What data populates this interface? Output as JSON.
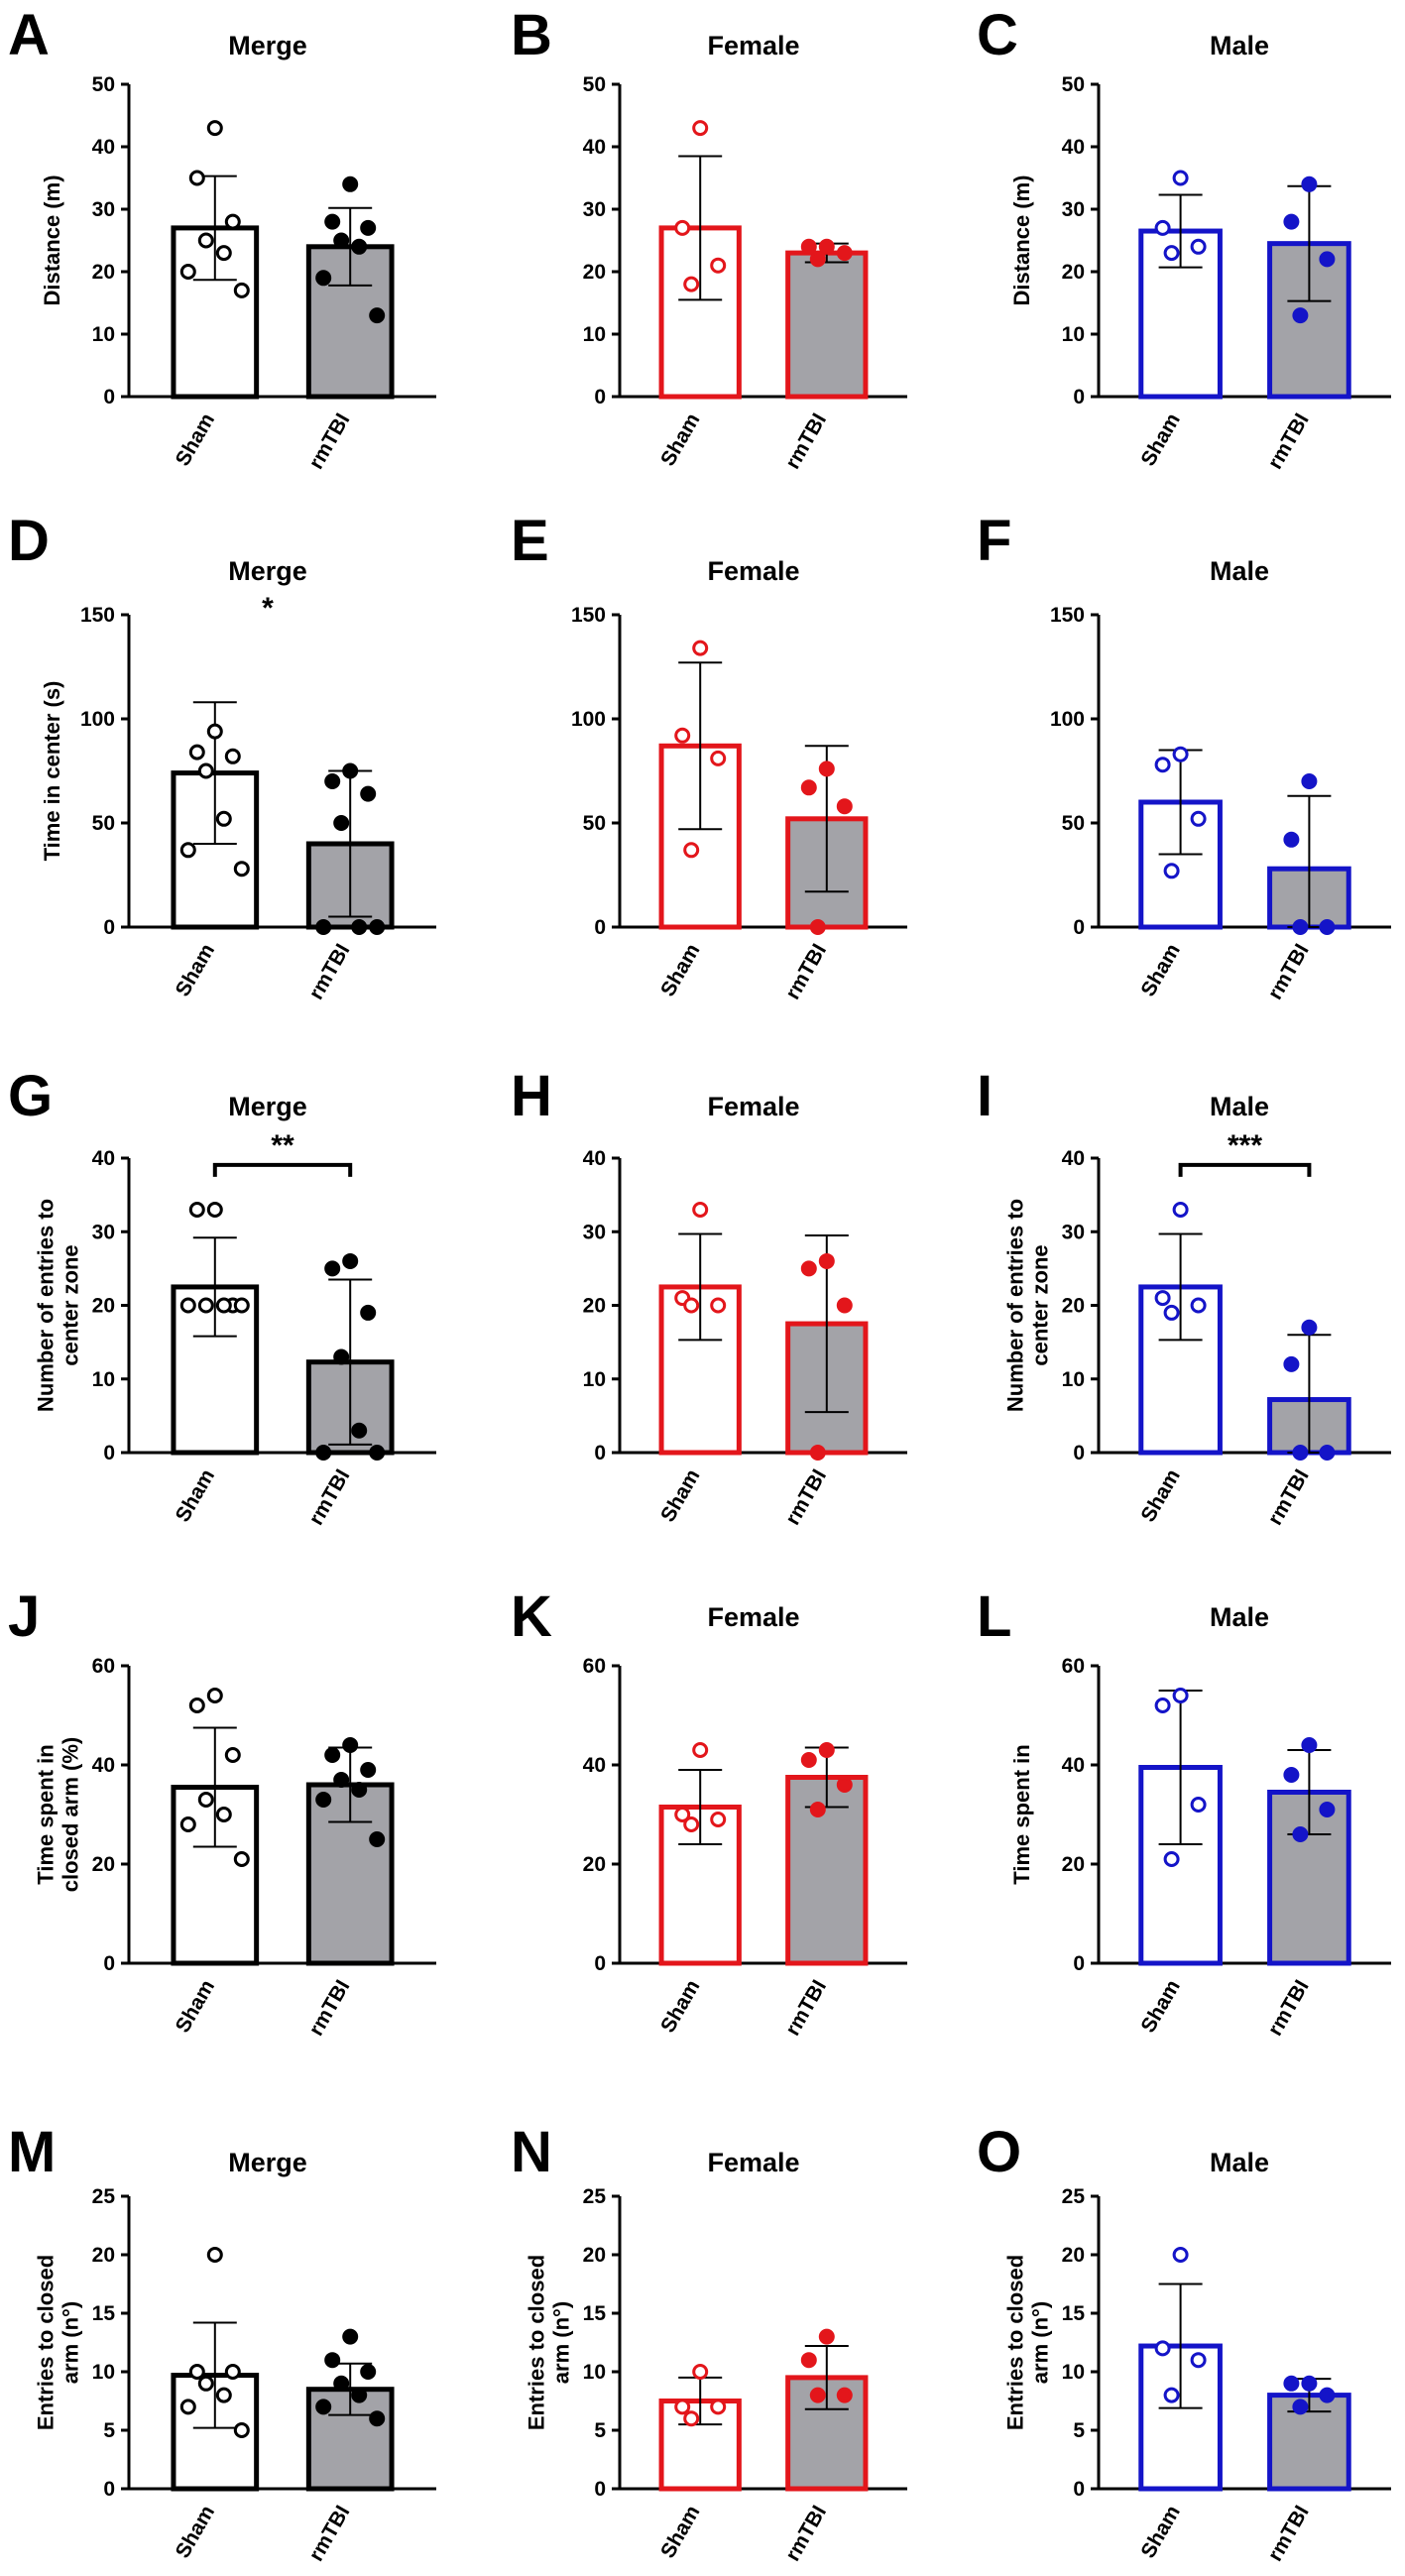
{
  "figure": {
    "background": "#ffffff"
  },
  "colors": {
    "merge": "#000000",
    "female": "#e3161b",
    "male": "#1414c8",
    "bar_fill_rmtbi": "#a3a3a8",
    "bar_fill_sham": "#ffffff"
  },
  "chart_data": [
    {
      "panel": "A",
      "type": "bar",
      "title": "Merge",
      "ylabel": "Distance (m)",
      "ylim": [
        0,
        50
      ],
      "yticks": [
        0,
        10,
        20,
        30,
        40,
        50
      ],
      "color_key": "merge",
      "categories": [
        "Sham",
        "rmTBI"
      ],
      "values": [
        27,
        24
      ],
      "sd": [
        8.3,
        6.2
      ],
      "points": [
        [
          43,
          35,
          28,
          25,
          23,
          20,
          17
        ],
        [
          34,
          28,
          27,
          25,
          24,
          19,
          13
        ]
      ],
      "significance": null
    },
    {
      "panel": "B",
      "type": "bar",
      "title": "Female",
      "ylabel": "",
      "ylim": [
        0,
        50
      ],
      "yticks": [
        0,
        10,
        20,
        30,
        40,
        50
      ],
      "color_key": "female",
      "categories": [
        "Sham",
        "rmTBI"
      ],
      "values": [
        27,
        23
      ],
      "sd": [
        11.5,
        1.5
      ],
      "points": [
        [
          43,
          27,
          21,
          18
        ],
        [
          24,
          24,
          23,
          22
        ]
      ],
      "significance": null
    },
    {
      "panel": "C",
      "type": "bar",
      "title": "Male",
      "ylabel": "Distance (m)",
      "ylim": [
        0,
        50
      ],
      "yticks": [
        0,
        10,
        20,
        30,
        40,
        50
      ],
      "color_key": "male",
      "categories": [
        "Sham",
        "rmTBI"
      ],
      "values": [
        26.5,
        24.5
      ],
      "sd": [
        5.8,
        9.2
      ],
      "points": [
        [
          35,
          27,
          24,
          23
        ],
        [
          34,
          28,
          22,
          13
        ]
      ],
      "significance": null
    },
    {
      "panel": "D",
      "type": "bar",
      "title": "Merge",
      "ylabel": "Time in center (s)",
      "ylim": [
        0,
        150
      ],
      "yticks": [
        0,
        50,
        100,
        150
      ],
      "color_key": "merge",
      "categories": [
        "Sham",
        "rmTBI"
      ],
      "values": [
        74,
        40
      ],
      "sd": [
        34,
        35
      ],
      "points": [
        [
          94,
          84,
          82,
          75,
          52,
          37,
          28
        ],
        [
          75,
          70,
          64,
          50,
          0,
          0,
          0
        ]
      ],
      "significance": {
        "label": "*",
        "bracket": false
      }
    },
    {
      "panel": "E",
      "type": "bar",
      "title": "Female",
      "ylabel": "",
      "ylim": [
        0,
        150
      ],
      "yticks": [
        0,
        50,
        100,
        150
      ],
      "color_key": "female",
      "categories": [
        "Sham",
        "rmTBI"
      ],
      "values": [
        87,
        52
      ],
      "sd": [
        40,
        35
      ],
      "points": [
        [
          134,
          92,
          81,
          37
        ],
        [
          76,
          67,
          58,
          0
        ]
      ],
      "significance": null
    },
    {
      "panel": "F",
      "type": "bar",
      "title": "Male",
      "ylabel": "",
      "ylim": [
        0,
        150
      ],
      "yticks": [
        0,
        50,
        100,
        150
      ],
      "color_key": "male",
      "categories": [
        "Sham",
        "rmTBI"
      ],
      "values": [
        60,
        28
      ],
      "sd": [
        25,
        35
      ],
      "points": [
        [
          83,
          78,
          52,
          27
        ],
        [
          70,
          42,
          0,
          0
        ]
      ],
      "significance": null
    },
    {
      "panel": "G",
      "type": "bar",
      "title": "Merge",
      "ylabel": "Number of entries to center zone",
      "ylim": [
        0,
        40
      ],
      "yticks": [
        0,
        10,
        20,
        30,
        40
      ],
      "color_key": "merge",
      "categories": [
        "Sham",
        "rmTBI"
      ],
      "values": [
        22.5,
        12.3
      ],
      "sd": [
        6.7,
        11.2
      ],
      "points": [
        [
          33,
          33,
          20,
          20,
          20,
          20,
          20
        ],
        [
          26,
          25,
          19,
          13,
          3,
          0,
          0
        ]
      ],
      "significance": {
        "label": "**",
        "bracket": true
      }
    },
    {
      "panel": "H",
      "type": "bar",
      "title": "Female",
      "ylabel": "",
      "ylim": [
        0,
        40
      ],
      "yticks": [
        0,
        10,
        20,
        30,
        40
      ],
      "color_key": "female",
      "categories": [
        "Sham",
        "rmTBI"
      ],
      "values": [
        22.5,
        17.5
      ],
      "sd": [
        7.2,
        12
      ],
      "points": [
        [
          33,
          21,
          20,
          20
        ],
        [
          26,
          25,
          20,
          0
        ]
      ],
      "significance": null
    },
    {
      "panel": "I",
      "type": "bar",
      "title": "Male",
      "ylabel": "Number of entries to center zone",
      "ylim": [
        0,
        40
      ],
      "yticks": [
        0,
        10,
        20,
        30,
        40
      ],
      "color_key": "male",
      "categories": [
        "Sham",
        "rmTBI"
      ],
      "values": [
        22.5,
        7.2
      ],
      "sd": [
        7.2,
        8.8
      ],
      "points": [
        [
          33,
          21,
          20,
          19
        ],
        [
          17,
          12,
          0,
          0
        ]
      ],
      "significance": {
        "label": "***",
        "bracket": true
      }
    },
    {
      "panel": "J",
      "type": "bar",
      "title": "",
      "ylabel": "Time spent in closed arm (%)",
      "ylim": [
        0,
        60
      ],
      "yticks": [
        0,
        20,
        40,
        60
      ],
      "color_key": "merge",
      "categories": [
        "Sham",
        "rmTBI"
      ],
      "values": [
        35.5,
        36
      ],
      "sd": [
        12,
        7.5
      ],
      "points": [
        [
          54,
          52,
          42,
          33,
          30,
          28,
          21
        ],
        [
          44,
          42,
          39,
          37,
          35,
          33,
          25
        ]
      ],
      "significance": null
    },
    {
      "panel": "K",
      "type": "bar",
      "title": "Female",
      "ylabel": "",
      "ylim": [
        0,
        60
      ],
      "yticks": [
        0,
        20,
        40,
        60
      ],
      "color_key": "female",
      "categories": [
        "Sham",
        "rmTBI"
      ],
      "values": [
        31.5,
        37.5
      ],
      "sd": [
        7.5,
        6
      ],
      "points": [
        [
          43,
          30,
          29,
          28
        ],
        [
          43,
          41,
          36,
          31
        ]
      ],
      "significance": null
    },
    {
      "panel": "L",
      "type": "bar",
      "title": "Male",
      "ylabel": "Time spent in",
      "ylim": [
        0,
        60
      ],
      "yticks": [
        0,
        20,
        40,
        60
      ],
      "color_key": "male",
      "categories": [
        "Sham",
        "rmTBI"
      ],
      "values": [
        39.5,
        34.5
      ],
      "sd": [
        15.5,
        8.5
      ],
      "points": [
        [
          54,
          52,
          32,
          21
        ],
        [
          44,
          38,
          31,
          26
        ]
      ],
      "significance": null
    },
    {
      "panel": "M",
      "type": "bar",
      "title": "Merge",
      "ylabel": "Entries to closed arm (n°)",
      "ylim": [
        0,
        25
      ],
      "yticks": [
        0,
        5,
        10,
        15,
        20,
        25
      ],
      "color_key": "merge",
      "categories": [
        "Sham",
        "rmTBI"
      ],
      "values": [
        9.7,
        8.5
      ],
      "sd": [
        4.5,
        2.2
      ],
      "points": [
        [
          20,
          10,
          10,
          9,
          8,
          7,
          5
        ],
        [
          13,
          11,
          10,
          9,
          8,
          7,
          6
        ]
      ],
      "significance": null
    },
    {
      "panel": "N",
      "type": "bar",
      "title": "Female",
      "ylabel": "Entries to closed arm (n°)",
      "ylim": [
        0,
        25
      ],
      "yticks": [
        0,
        5,
        10,
        15,
        20,
        25
      ],
      "color_key": "female",
      "categories": [
        "Sham",
        "rmTBI"
      ],
      "values": [
        7.5,
        9.5
      ],
      "sd": [
        2,
        2.7
      ],
      "points": [
        [
          10,
          7,
          7,
          6
        ],
        [
          13,
          11,
          8,
          8
        ]
      ],
      "significance": null
    },
    {
      "panel": "O",
      "type": "bar",
      "title": "Male",
      "ylabel": "Entries to closed arm (n°)",
      "ylim": [
        0,
        25
      ],
      "yticks": [
        0,
        5,
        10,
        15,
        20,
        25
      ],
      "color_key": "male",
      "categories": [
        "Sham",
        "rmTBI"
      ],
      "values": [
        12.2,
        8
      ],
      "sd": [
        5.3,
        1.4
      ],
      "points": [
        [
          20,
          12,
          11,
          8
        ],
        [
          9,
          9,
          8,
          7
        ]
      ],
      "significance": null
    }
  ]
}
